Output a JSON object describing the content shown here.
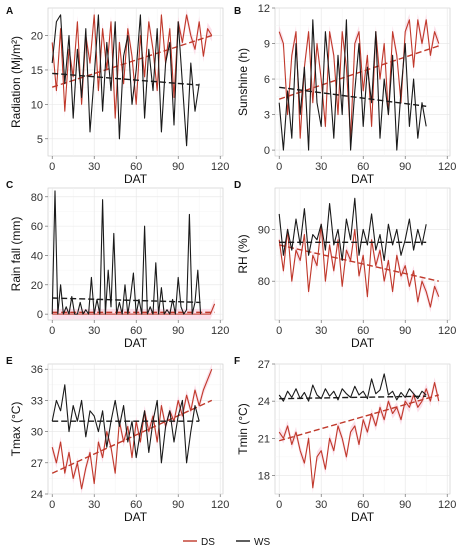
{
  "legend": [
    {
      "label": "DS",
      "color": "#c0392b"
    },
    {
      "label": "WS",
      "color": "#1a1a1a"
    }
  ],
  "colors": {
    "ds": "#c0392b",
    "ws": "#1a1a1a",
    "ribbon": "#f7c6d9"
  },
  "chart_data": [
    {
      "panel": "A",
      "type": "line",
      "ylabel": "Radiation (Mj/m²)",
      "xlabel": "DAT",
      "xlim": [
        -3,
        122
      ],
      "ylim": [
        2.5,
        24
      ],
      "xticks": [
        0,
        30,
        60,
        90,
        120
      ],
      "yticks": [
        5,
        10,
        15,
        20
      ],
      "series": [
        {
          "name": "DS",
          "x": [
            0,
            3,
            6,
            9,
            12,
            15,
            18,
            21,
            24,
            27,
            30,
            33,
            36,
            39,
            42,
            45,
            48,
            51,
            54,
            57,
            60,
            63,
            66,
            69,
            72,
            75,
            78,
            81,
            84,
            87,
            90,
            93,
            96,
            99,
            102,
            105,
            108,
            111,
            114
          ],
          "values": [
            19,
            12,
            21,
            9,
            18,
            14,
            22,
            10,
            20,
            16,
            23,
            12,
            21,
            15,
            22,
            8,
            19,
            13,
            21,
            17,
            10,
            20,
            14,
            22,
            18,
            12,
            23,
            16,
            21,
            11,
            22,
            19,
            23,
            20,
            18,
            22,
            17,
            21,
            20
          ],
          "trend": [
            12.5,
            20.0
          ]
        },
        {
          "name": "WS",
          "x": [
            0,
            3,
            6,
            9,
            12,
            15,
            18,
            21,
            24,
            27,
            30,
            33,
            36,
            39,
            42,
            45,
            48,
            51,
            54,
            57,
            60,
            63,
            66,
            69,
            72,
            75,
            78,
            81,
            84,
            87,
            90,
            93,
            96,
            99,
            102,
            105
          ],
          "values": [
            16,
            22,
            23,
            13,
            20,
            8,
            18,
            11,
            21,
            6,
            14,
            23,
            9,
            19,
            12,
            22,
            5,
            17,
            20,
            10,
            15,
            23,
            8,
            18,
            12,
            21,
            6,
            16,
            19,
            7,
            22,
            13,
            4,
            16,
            9,
            13
          ],
          "trend": [
            14.5,
            12.8
          ]
        }
      ]
    },
    {
      "panel": "B",
      "type": "line",
      "ylabel": "Sunshine (h)",
      "xlabel": "DAT",
      "xlim": [
        -3,
        122
      ],
      "ylim": [
        -0.5,
        12
      ],
      "xticks": [
        0,
        30,
        60,
        90,
        120
      ],
      "yticks": [
        0,
        3,
        6,
        9,
        12
      ],
      "series": [
        {
          "name": "DS",
          "x": [
            0,
            3,
            6,
            9,
            12,
            15,
            18,
            21,
            24,
            27,
            30,
            33,
            36,
            39,
            42,
            45,
            48,
            51,
            54,
            57,
            60,
            63,
            66,
            69,
            72,
            75,
            78,
            81,
            84,
            87,
            90,
            93,
            96,
            99,
            102,
            105,
            108,
            111,
            114
          ],
          "values": [
            10,
            9,
            3,
            8,
            10,
            1,
            7,
            10,
            4,
            9,
            6,
            2,
            10,
            8,
            3,
            10,
            7,
            1,
            9,
            10,
            5,
            8,
            2,
            10,
            6,
            9,
            3,
            10,
            8,
            4,
            10,
            11,
            7,
            11,
            9,
            11,
            8,
            10,
            9
          ],
          "trend": [
            4.3,
            8.8
          ]
        },
        {
          "name": "WS",
          "x": [
            0,
            3,
            6,
            9,
            12,
            15,
            18,
            21,
            24,
            27,
            30,
            33,
            36,
            39,
            42,
            45,
            48,
            51,
            54,
            57,
            60,
            63,
            66,
            69,
            72,
            75,
            78,
            81,
            84,
            87,
            90,
            93,
            96,
            99,
            102,
            105
          ],
          "values": [
            4,
            0,
            5,
            1,
            9,
            3,
            7,
            0,
            11,
            4,
            2,
            10,
            6,
            1,
            8,
            3,
            11,
            0,
            5,
            9,
            2,
            7,
            4,
            10,
            1,
            6,
            3,
            8,
            0,
            5,
            9,
            2,
            6,
            1,
            4,
            2
          ],
          "trend": [
            5.3,
            3.7
          ]
        }
      ]
    },
    {
      "panel": "C",
      "type": "line",
      "ylabel": "Rain fall (mm)",
      "xlabel": "DAT",
      "xlim": [
        -3,
        122
      ],
      "ylim": [
        -4,
        86
      ],
      "xticks": [
        0,
        30,
        60,
        90,
        120
      ],
      "yticks": [
        0,
        20,
        40,
        60,
        80
      ],
      "series": [
        {
          "name": "DS",
          "x": [
            0,
            10,
            20,
            30,
            40,
            50,
            60,
            70,
            80,
            90,
            100,
            110,
            113,
            116
          ],
          "values": [
            0,
            0,
            0,
            0,
            0,
            0,
            0,
            0,
            0,
            0,
            0,
            0,
            0,
            7
          ],
          "trend": [
            1.2,
            1.2
          ]
        },
        {
          "name": "WS",
          "x": [
            0,
            2,
            4,
            6,
            8,
            10,
            12,
            14,
            16,
            18,
            20,
            22,
            24,
            26,
            28,
            30,
            32,
            34,
            36,
            38,
            40,
            42,
            44,
            46,
            48,
            50,
            52,
            54,
            56,
            58,
            60,
            62,
            64,
            66,
            68,
            70,
            72,
            74,
            76,
            78,
            80,
            82,
            84,
            86,
            88,
            90,
            92,
            94,
            96,
            98,
            100,
            102,
            104,
            106
          ],
          "values": [
            0,
            84,
            0,
            20,
            0,
            5,
            0,
            12,
            0,
            0,
            8,
            0,
            3,
            0,
            25,
            0,
            10,
            0,
            78,
            0,
            30,
            5,
            55,
            0,
            8,
            0,
            20,
            0,
            12,
            28,
            0,
            10,
            0,
            60,
            0,
            5,
            0,
            35,
            0,
            18,
            0,
            3,
            0,
            10,
            0,
            25,
            5,
            0,
            3,
            68,
            0,
            8,
            30,
            0
          ],
          "trend": [
            11,
            8
          ]
        }
      ]
    },
    {
      "panel": "D",
      "type": "line",
      "ylabel": "RH (%)",
      "xlabel": "DAT",
      "xlim": [
        -3,
        122
      ],
      "ylim": [
        72.5,
        98
      ],
      "xticks": [
        0,
        30,
        60,
        90,
        120
      ],
      "yticks": [
        80,
        90
      ],
      "series": [
        {
          "name": "DS",
          "x": [
            0,
            3,
            6,
            9,
            12,
            15,
            18,
            21,
            24,
            27,
            30,
            33,
            36,
            39,
            42,
            45,
            48,
            51,
            54,
            57,
            60,
            63,
            66,
            69,
            72,
            75,
            78,
            81,
            84,
            87,
            90,
            93,
            96,
            99,
            102,
            105,
            108,
            111,
            114
          ],
          "values": [
            88,
            82,
            90,
            80,
            86,
            84,
            89,
            78,
            85,
            83,
            91,
            80,
            87,
            82,
            88,
            79,
            86,
            84,
            90,
            81,
            85,
            77,
            88,
            83,
            86,
            80,
            84,
            78,
            85,
            81,
            83,
            79,
            82,
            76,
            80,
            78,
            75,
            79,
            77
          ],
          "trend": [
            87,
            80
          ]
        },
        {
          "name": "WS",
          "x": [
            0,
            3,
            6,
            9,
            12,
            15,
            18,
            21,
            24,
            27,
            30,
            33,
            36,
            39,
            42,
            45,
            48,
            51,
            54,
            57,
            60,
            63,
            66,
            69,
            72,
            75,
            78,
            81,
            84,
            87,
            90,
            93,
            96,
            99,
            102,
            105
          ],
          "values": [
            93,
            85,
            90,
            86,
            92,
            87,
            94,
            85,
            89,
            88,
            91,
            86,
            95,
            87,
            90,
            84,
            92,
            88,
            96,
            85,
            90,
            87,
            93,
            86,
            89,
            84,
            91,
            87,
            90,
            85,
            88,
            92,
            86,
            90,
            87,
            91
          ],
          "trend": [
            87.5,
            87.5
          ]
        }
      ]
    },
    {
      "panel": "E",
      "type": "line",
      "ylabel": "Tmax (°C)",
      "xlabel": "DAT",
      "xlim": [
        -3,
        122
      ],
      "ylim": [
        24,
        36.5
      ],
      "xticks": [
        0,
        30,
        60,
        90,
        120
      ],
      "yticks": [
        24,
        27,
        30,
        33,
        36
      ],
      "series": [
        {
          "name": "DS",
          "x": [
            0,
            3,
            6,
            9,
            12,
            15,
            18,
            21,
            24,
            27,
            30,
            33,
            36,
            39,
            42,
            45,
            48,
            51,
            54,
            57,
            60,
            63,
            66,
            69,
            72,
            75,
            78,
            81,
            84,
            87,
            90,
            93,
            96,
            99,
            102,
            105,
            108,
            111,
            114
          ],
          "values": [
            28.5,
            27,
            29,
            26,
            28,
            25.5,
            27,
            24.5,
            26.5,
            28,
            25,
            29,
            27.5,
            30,
            28.5,
            26,
            31,
            29,
            30.5,
            27.5,
            31,
            29,
            32,
            30,
            31.5,
            29,
            32.5,
            30.5,
            32,
            31,
            33,
            31.5,
            33.5,
            32,
            34,
            32.5,
            34,
            35,
            36
          ],
          "trend": [
            26.0,
            33.0
          ]
        },
        {
          "name": "WS",
          "x": [
            0,
            3,
            6,
            9,
            12,
            15,
            18,
            21,
            24,
            27,
            30,
            33,
            36,
            39,
            42,
            45,
            48,
            51,
            54,
            57,
            60,
            63,
            66,
            69,
            72,
            75,
            78,
            81,
            84,
            87,
            90,
            93,
            96,
            99,
            102,
            105
          ],
          "values": [
            31,
            33,
            32,
            34.5,
            30,
            32.5,
            31,
            33,
            29.5,
            32,
            31.5,
            30,
            32,
            28.5,
            31,
            33,
            30.5,
            32.5,
            29,
            31,
            27.5,
            30,
            32,
            28,
            31,
            33,
            27,
            30.5,
            32,
            29,
            31.5,
            33,
            27,
            30,
            32.5,
            31
          ],
          "trend": [
            31.0,
            31.0
          ]
        }
      ]
    },
    {
      "panel": "F",
      "type": "line",
      "ylabel": "Tmin (°C)",
      "xlabel": "DAT",
      "xlim": [
        -3,
        122
      ],
      "ylim": [
        16.5,
        27
      ],
      "xticks": [
        0,
        30,
        60,
        90,
        120
      ],
      "yticks": [
        18,
        21,
        24,
        27
      ],
      "series": [
        {
          "name": "DS",
          "x": [
            0,
            3,
            6,
            9,
            12,
            15,
            18,
            21,
            24,
            27,
            30,
            33,
            36,
            39,
            42,
            45,
            48,
            51,
            54,
            57,
            60,
            63,
            66,
            69,
            72,
            75,
            78,
            81,
            84,
            87,
            90,
            93,
            96,
            99,
            102,
            105,
            108,
            111,
            114
          ],
          "values": [
            21.5,
            21,
            22,
            20.5,
            21.5,
            20,
            19,
            21,
            17,
            19.5,
            20,
            18.5,
            21,
            20,
            22,
            21,
            19.5,
            21.5,
            22,
            20.5,
            22.5,
            21.5,
            23,
            22,
            23.5,
            22.5,
            24,
            23,
            23.5,
            22.5,
            24,
            23.5,
            24.5,
            23.5,
            24,
            25,
            24,
            25.5,
            24
          ],
          "trend": [
            20.8,
            24.5
          ]
        },
        {
          "name": "WS",
          "x": [
            0,
            3,
            6,
            9,
            12,
            15,
            18,
            21,
            24,
            27,
            30,
            33,
            36,
            39,
            42,
            45,
            48,
            51,
            54,
            57,
            60,
            63,
            66,
            69,
            72,
            75,
            78,
            81,
            84,
            87,
            90,
            93,
            96,
            99,
            102,
            105
          ],
          "values": [
            24.5,
            24,
            24.8,
            24.3,
            25,
            24.2,
            24.7,
            24,
            25.3,
            24.5,
            24.2,
            25,
            24.4,
            24.8,
            24.1,
            25,
            24.6,
            24.3,
            25.2,
            24.5,
            24.8,
            24.2,
            25.8,
            24.6,
            24.9,
            26.2,
            24.5,
            24.8,
            24.1,
            24.7,
            24.3,
            25,
            24.6,
            24.2,
            24.8,
            24.5
          ],
          "trend": [
            24.2,
            24.4
          ]
        }
      ]
    }
  ]
}
